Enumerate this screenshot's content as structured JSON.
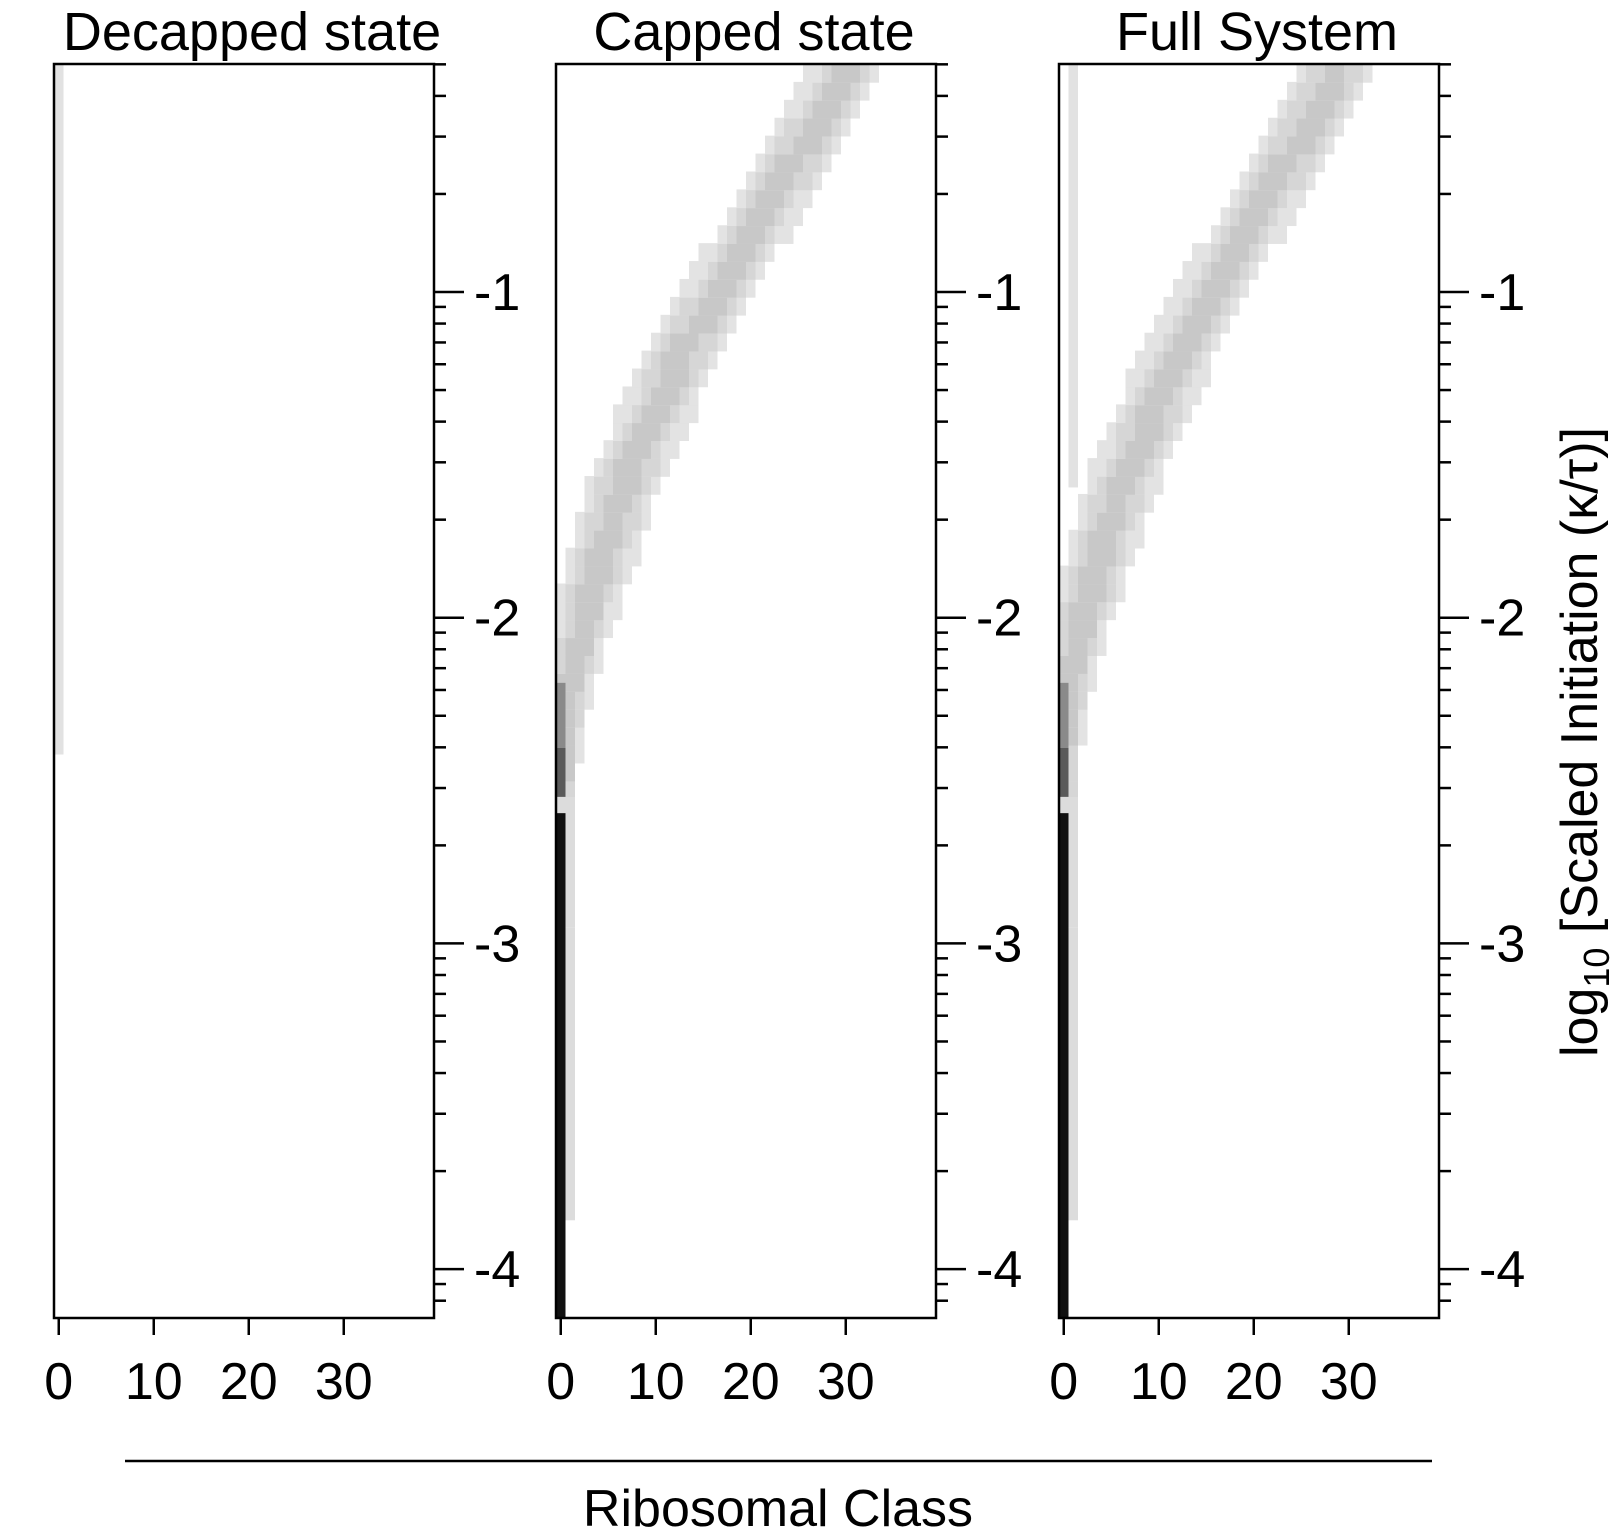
{
  "chart_data": {
    "type": "heatmap",
    "shared": {
      "xlabel": "Ribosomal Class",
      "ylabel_prefix": "log",
      "ylabel_subscript": "10",
      "ylabel_suffix": " [Scaled Initiation (κ/τ)]",
      "x_ticks": [
        "0",
        "10",
        "20",
        "30"
      ],
      "x_tick_values": [
        0,
        10,
        20,
        30
      ],
      "xlim": [
        -0.5,
        39.5
      ],
      "y_ticks": [
        "-1",
        "-2",
        "-3",
        "-4"
      ],
      "y_tick_values": [
        -1,
        -2,
        -3,
        -4
      ],
      "ylim": [
        -4.15,
        -0.3
      ],
      "y_scale": "log10",
      "colormap": "white-to-black (probability density)"
    },
    "panels": [
      {
        "title": "Decapped state",
        "cells": [
          {
            "x0": 0,
            "x1": 1,
            "y_lo": -2.42,
            "y_hi": -0.3,
            "shade": "#e2e2e2"
          }
        ]
      },
      {
        "title": "Capped state",
        "band": [
          {
            "y": -0.3,
            "x": 31.0,
            "hw": 3.5
          },
          {
            "y": -0.5,
            "x": 27.0,
            "hw": 3.5
          },
          {
            "y": -0.8,
            "x": 21.0,
            "hw": 3.5
          },
          {
            "y": -1.0,
            "x": 17.0,
            "hw": 3.5
          },
          {
            "y": -1.2,
            "x": 13.0,
            "hw": 3.6
          },
          {
            "y": -1.4,
            "x": 10.0,
            "hw": 3.6
          },
          {
            "y": -1.6,
            "x": 7.0,
            "hw": 3.5
          },
          {
            "y": -1.8,
            "x": 5.0,
            "hw": 3.3
          },
          {
            "y": -2.0,
            "x": 3.0,
            "hw": 2.8
          },
          {
            "y": -2.2,
            "x": 1.5,
            "hw": 2.0
          },
          {
            "y": -2.4,
            "x": 0.8,
            "hw": 1.3
          },
          {
            "y": -2.6,
            "x": 0.5,
            "hw": 0.9
          }
        ],
        "cells": [
          {
            "x0": 0,
            "x1": 2,
            "y_lo": -2.95,
            "y_hi": -2.55,
            "shade": "#dcdcdc"
          },
          {
            "x0": 1,
            "x1": 2,
            "y_lo": -3.85,
            "y_hi": -2.95,
            "shade": "#dcdcdc"
          },
          {
            "x0": 0,
            "x1": 1,
            "y_lo": -2.55,
            "y_hi": -2.4,
            "shade": "#5a5a5a"
          },
          {
            "x0": 0,
            "x1": 1,
            "y_lo": -2.4,
            "y_hi": -2.2,
            "shade": "#8a8a8a"
          },
          {
            "x0": 0,
            "x1": 1,
            "y_lo": -4.15,
            "y_hi": -2.6,
            "shade": "#111111"
          }
        ]
      },
      {
        "title": "Full System",
        "band": [
          {
            "y": -0.3,
            "x": 29.5,
            "hw": 3.5
          },
          {
            "y": -0.5,
            "x": 26.0,
            "hw": 3.5
          },
          {
            "y": -0.8,
            "x": 20.0,
            "hw": 3.5
          },
          {
            "y": -1.0,
            "x": 16.0,
            "hw": 3.5
          },
          {
            "y": -1.2,
            "x": 12.5,
            "hw": 3.6
          },
          {
            "y": -1.4,
            "x": 9.5,
            "hw": 3.6
          },
          {
            "y": -1.6,
            "x": 6.5,
            "hw": 3.5
          },
          {
            "y": -1.8,
            "x": 4.5,
            "hw": 3.3
          },
          {
            "y": -2.0,
            "x": 2.5,
            "hw": 2.8
          },
          {
            "y": -2.2,
            "x": 1.2,
            "hw": 2.0
          },
          {
            "y": -2.4,
            "x": 0.6,
            "hw": 1.3
          },
          {
            "y": -2.6,
            "x": 0.4,
            "hw": 0.9
          }
        ],
        "cells": [
          {
            "x0": 1,
            "x1": 2,
            "y_lo": -1.6,
            "y_hi": -0.3,
            "shade": "#e2e2e2"
          },
          {
            "x0": 0,
            "x1": 2,
            "y_lo": -2.95,
            "y_hi": -2.55,
            "shade": "#dcdcdc"
          },
          {
            "x0": 1,
            "x1": 2,
            "y_lo": -3.85,
            "y_hi": -2.95,
            "shade": "#dcdcdc"
          },
          {
            "x0": 0,
            "x1": 1,
            "y_lo": -2.55,
            "y_hi": -2.4,
            "shade": "#5a5a5a"
          },
          {
            "x0": 0,
            "x1": 1,
            "y_lo": -2.4,
            "y_hi": -2.2,
            "shade": "#8a8a8a"
          },
          {
            "x0": 0,
            "x1": 1,
            "y_lo": -4.15,
            "y_hi": -2.6,
            "shade": "#111111"
          }
        ]
      }
    ]
  }
}
